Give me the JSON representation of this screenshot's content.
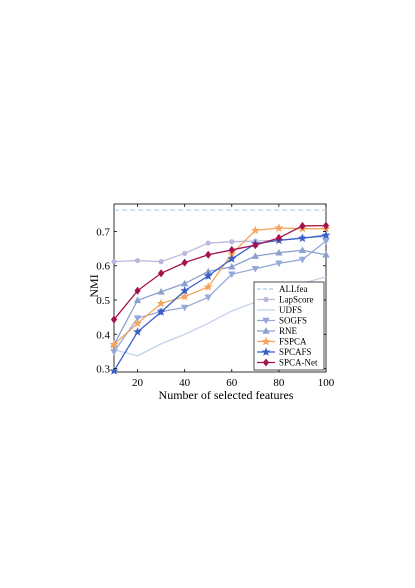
{
  "chart_data": {
    "type": "line",
    "xlabel": "Number of selected features",
    "ylabel": "NMI",
    "xlim": [
      10,
      100
    ],
    "ylim": [
      0.29,
      0.78
    ],
    "xticks": [
      20,
      40,
      60,
      80,
      100
    ],
    "yticks": [
      0.3,
      0.4,
      0.5,
      0.6,
      0.7
    ],
    "xtick_labels": [
      "20",
      "40",
      "60",
      "80",
      "100"
    ],
    "ytick_labels": [
      "0.3",
      "0.4",
      "0.5",
      "0.6",
      "0.7"
    ],
    "grid": false,
    "legend_position": "bottom-right",
    "x": [
      10,
      20,
      30,
      40,
      50,
      60,
      70,
      80,
      90,
      100
    ],
    "series": [
      {
        "name": "ALLfea",
        "color": "#a9c8e6",
        "marker": "none",
        "dashed": true,
        "values": [
          0.762,
          0.762,
          0.762,
          0.762,
          0.762,
          0.762,
          0.762,
          0.762,
          0.762,
          0.762
        ]
      },
      {
        "name": "LapScore",
        "color": "#b9b9dc",
        "marker": "circle",
        "values": [
          0.612,
          0.615,
          0.612,
          0.636,
          0.666,
          0.67,
          0.672,
          0.674,
          0.682,
          0.684
        ]
      },
      {
        "name": "UDFS",
        "color": "#c2d2ea",
        "marker": "none",
        "values": [
          0.355,
          0.337,
          0.372,
          0.4,
          0.432,
          0.468,
          0.494,
          0.519,
          0.548,
          0.568
        ]
      },
      {
        "name": "SOGFS",
        "color": "#96a8d8",
        "marker": "triangle-down",
        "values": [
          0.349,
          0.447,
          0.466,
          0.478,
          0.508,
          0.575,
          0.591,
          0.607,
          0.618,
          0.672
        ]
      },
      {
        "name": "RNE",
        "color": "#8ca2ce",
        "marker": "triangle-up",
        "values": [
          0.37,
          0.499,
          0.524,
          0.548,
          0.583,
          0.597,
          0.628,
          0.638,
          0.645,
          0.632
        ]
      },
      {
        "name": "FSPCA",
        "color": "#f4a45b",
        "marker": "star",
        "values": [
          0.37,
          0.432,
          0.49,
          0.51,
          0.538,
          0.634,
          0.703,
          0.71,
          0.708,
          0.708
        ]
      },
      {
        "name": "SPCAFS",
        "color": "#3b5fc8",
        "marker": "star",
        "values": [
          0.293,
          0.407,
          0.465,
          0.527,
          0.57,
          0.62,
          0.664,
          0.674,
          0.68,
          0.689
        ]
      },
      {
        "name": "SPCA-Net",
        "color": "#a3144f",
        "marker": "diamond",
        "values": [
          0.443,
          0.527,
          0.578,
          0.609,
          0.632,
          0.646,
          0.66,
          0.681,
          0.716,
          0.717
        ]
      }
    ]
  }
}
